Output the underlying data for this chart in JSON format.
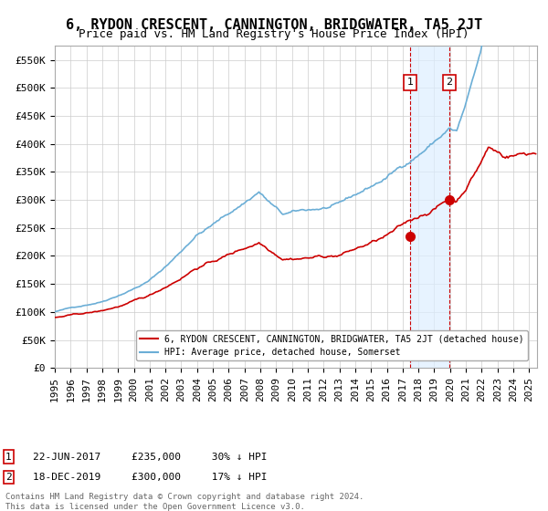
{
  "title": "6, RYDON CRESCENT, CANNINGTON, BRIDGWATER, TA5 2JT",
  "subtitle": "Price paid vs. HM Land Registry's House Price Index (HPI)",
  "xlim": [
    1995.0,
    2025.5
  ],
  "ylim": [
    0,
    575000
  ],
  "yticks": [
    0,
    50000,
    100000,
    150000,
    200000,
    250000,
    300000,
    350000,
    400000,
    450000,
    500000,
    550000
  ],
  "ytick_labels": [
    "£0",
    "£50K",
    "£100K",
    "£150K",
    "£200K",
    "£250K",
    "£300K",
    "£350K",
    "£400K",
    "£450K",
    "£500K",
    "£550K"
  ],
  "xticks": [
    1995,
    1996,
    1997,
    1998,
    1999,
    2000,
    2001,
    2002,
    2003,
    2004,
    2005,
    2006,
    2007,
    2008,
    2009,
    2010,
    2011,
    2012,
    2013,
    2014,
    2015,
    2016,
    2017,
    2018,
    2019,
    2020,
    2021,
    2022,
    2023,
    2024,
    2025
  ],
  "hpi_color": "#6baed6",
  "price_color": "#cc0000",
  "point1_x": 2017.47,
  "point1_y": 235000,
  "point2_x": 2019.96,
  "point2_y": 300000,
  "shade_x1": 2017.47,
  "shade_x2": 2019.96,
  "vline1_x": 2017.47,
  "vline2_x": 2019.96,
  "legend_line1": "6, RYDON CRESCENT, CANNINGTON, BRIDGWATER, TA5 2JT (detached house)",
  "legend_line2": "HPI: Average price, detached house, Somerset",
  "annotation1_label": "1",
  "annotation2_label": "2",
  "annotation1_text": "22-JUN-2017     £235,000     30% ↓ HPI",
  "annotation2_text": "18-DEC-2019     £300,000     17% ↓ HPI",
  "footer": "Contains HM Land Registry data © Crown copyright and database right 2024.\nThis data is licensed under the Open Government Licence v3.0.",
  "title_fontsize": 11,
  "subtitle_fontsize": 9,
  "axis_fontsize": 8,
  "bg_color": "#ffffff",
  "grid_color": "#cccccc"
}
